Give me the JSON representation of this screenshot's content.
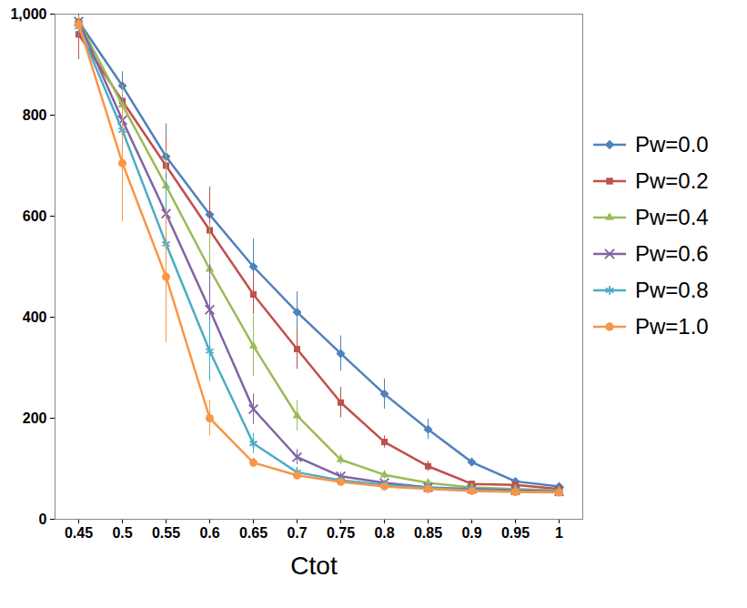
{
  "chart_data": {
    "type": "line",
    "x_label": "Ctot",
    "categories": [
      "0.45",
      "0.5",
      "0.55",
      "0.6",
      "0.65",
      "0.7",
      "0.75",
      "0.8",
      "0.85",
      "0.9",
      "0.95",
      "1"
    ],
    "ylim": [
      0,
      1000
    ],
    "yticks": [
      0,
      200,
      400,
      600,
      800,
      1000
    ],
    "grid": false,
    "legend": "right",
    "series": [
      {
        "name": "Pw=0.0",
        "color": "#4F81BD",
        "marker": "diamond",
        "values": [
          985,
          858,
          718,
          603,
          500,
          410,
          328,
          248,
          178,
          113,
          75,
          65
        ],
        "errors": [
          10,
          28,
          65,
          55,
          55,
          40,
          35,
          30,
          20,
          8,
          5,
          5
        ]
      },
      {
        "name": "Pw=0.2",
        "color": "#C0504D",
        "marker": "square",
        "values": [
          960,
          828,
          700,
          572,
          445,
          337,
          231,
          153,
          105,
          70,
          68,
          60
        ],
        "errors": [
          50,
          40,
          60,
          80,
          40,
          40,
          30,
          12,
          10,
          5,
          5,
          5
        ]
      },
      {
        "name": "Pw=0.4",
        "color": "#9BBB59",
        "marker": "triangle",
        "values": [
          985,
          820,
          660,
          495,
          343,
          205,
          118,
          88,
          72,
          63,
          60,
          57
        ],
        "errors": [
          10,
          40,
          70,
          90,
          60,
          30,
          10,
          8,
          5,
          5,
          5,
          5
        ]
      },
      {
        "name": "Pw=0.6",
        "color": "#8064A2",
        "marker": "cross",
        "values": [
          985,
          790,
          605,
          415,
          218,
          123,
          85,
          72,
          63,
          60,
          57,
          55
        ],
        "errors": [
          10,
          40,
          80,
          90,
          30,
          15,
          8,
          5,
          5,
          5,
          5,
          5
        ]
      },
      {
        "name": "Pw=0.8",
        "color": "#4BACC6",
        "marker": "asterisk",
        "values": [
          975,
          770,
          545,
          333,
          150,
          93,
          77,
          68,
          62,
          58,
          55,
          54
        ],
        "errors": [
          20,
          70,
          130,
          60,
          20,
          10,
          5,
          5,
          5,
          5,
          5,
          5
        ]
      },
      {
        "name": "Pw=1.0",
        "color": "#F79646",
        "marker": "circle",
        "values": [
          980,
          705,
          480,
          200,
          112,
          87,
          74,
          65,
          60,
          56,
          54,
          53
        ],
        "errors": [
          15,
          115,
          130,
          35,
          10,
          8,
          5,
          5,
          5,
          5,
          5,
          5
        ]
      }
    ]
  }
}
